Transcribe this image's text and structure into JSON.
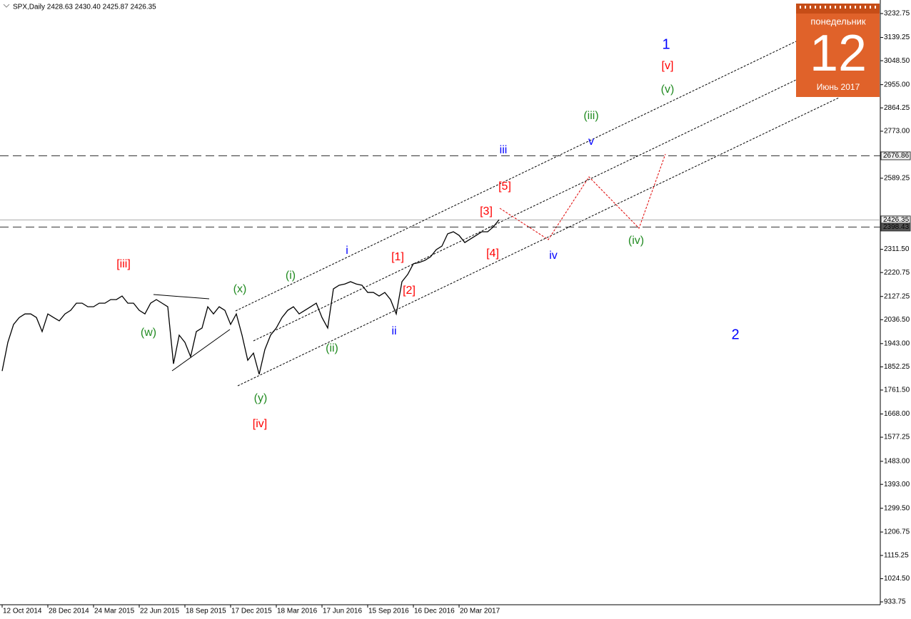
{
  "header": "SPX,Daily  2428.63 2430.40 2425.87 2426.35",
  "calendar": {
    "weekday": "понедельник",
    "day": "12",
    "month": "Июнь 2017"
  },
  "chart_data": {
    "type": "line",
    "categories": [
      "12 Oct 2014",
      null,
      null,
      null,
      null,
      null,
      null,
      null,
      "28 Dec 2014",
      null,
      null,
      null,
      null,
      null,
      null,
      null,
      "24 Mar 2015",
      null,
      null,
      null,
      null,
      null,
      null,
      null,
      "22 Jun 2015",
      null,
      null,
      null,
      null,
      null,
      null,
      null,
      "18 Sep 2015",
      null,
      null,
      null,
      null,
      null,
      null,
      null,
      "17 Dec 2015",
      null,
      null,
      null,
      null,
      null,
      null,
      null,
      "18 Mar 2016",
      null,
      null,
      null,
      null,
      null,
      null,
      null,
      "17 Jun 2016",
      null,
      null,
      null,
      null,
      null,
      null,
      null,
      "15 Sep 2016",
      null,
      null,
      null,
      null,
      null,
      null,
      null,
      "16 Dec 2016",
      null,
      null,
      null,
      null,
      null,
      null,
      null,
      "20 Mar 2017",
      null,
      null,
      null,
      null,
      null,
      null,
      null
    ],
    "series": [
      {
        "name": "SPX",
        "color": "#000000",
        "values": [
          1836,
          1948,
          2018,
          2045,
          2059,
          2059,
          2045,
          1990,
          2059,
          2045,
          2032,
          2059,
          2073,
          2101,
          2101,
          2087,
          2087,
          2101,
          2101,
          2115,
          2115,
          2129,
          2101,
          2101,
          2073,
          2059,
          2101,
          2115,
          2101,
          2087,
          1864,
          1976,
          1948,
          1892,
          1990,
          2004,
          2087,
          2059,
          2087,
          2073,
          2018,
          2059,
          1976,
          1878,
          1906,
          1823,
          1920,
          1976,
          2004,
          2045,
          2073,
          2087,
          2059,
          2073,
          2087,
          2101,
          2045,
          2004,
          2157,
          2171,
          2176,
          2185,
          2176,
          2171,
          2143,
          2143,
          2129,
          2143,
          2115,
          2059,
          2185,
          2213,
          2255,
          2260,
          2268,
          2282,
          2310,
          2324,
          2372,
          2380,
          2366,
          2338,
          2352,
          2366,
          2380,
          2380,
          2399,
          2427
        ]
      }
    ],
    "ylim": [
      922.6,
      3285.7
    ],
    "yticks": [
      {
        "value": 3232.75,
        "label": "3232.75"
      },
      {
        "value": 3139.25,
        "label": "3139.25"
      },
      {
        "value": 3048.5,
        "label": "3048.50"
      },
      {
        "value": 2955,
        "label": "2955.00"
      },
      {
        "value": 2864.25,
        "label": "2864.25"
      },
      {
        "value": 2773,
        "label": "2773.00"
      },
      {
        "value": 2589.25,
        "label": "2589.25"
      },
      {
        "value": 2311.5,
        "label": "2311.50"
      },
      {
        "value": 2220.75,
        "label": "2220.75"
      },
      {
        "value": 2127.25,
        "label": "2127.25"
      },
      {
        "value": 2036.5,
        "label": "2036.50"
      },
      {
        "value": 1943,
        "label": "1943.00"
      },
      {
        "value": 1852.25,
        "label": "1852.25"
      },
      {
        "value": 1761.5,
        "label": "1761.50"
      },
      {
        "value": 1668,
        "label": "1668.00"
      },
      {
        "value": 1577.25,
        "label": "1577.25"
      },
      {
        "value": 1483,
        "label": "1483.00"
      },
      {
        "value": 1393,
        "label": "1393.00"
      },
      {
        "value": 1299.5,
        "label": "1299.50"
      },
      {
        "value": 1206.75,
        "label": "1206.75"
      },
      {
        "value": 1115.25,
        "label": "1115.25"
      },
      {
        "value": 1024.5,
        "label": "1024.50"
      },
      {
        "value": 933.75,
        "label": "933.75"
      }
    ],
    "levels": [
      2676.86,
      2426.35,
      2398.43
    ],
    "annotations": [
      {
        "text": "1",
        "color": "#0000ff"
      },
      {
        "text": "[v]",
        "color": "#ff0000"
      },
      {
        "text": "(v)",
        "color": "#228b22"
      },
      {
        "text": "(iii)",
        "color": "#228b22"
      },
      {
        "text": "v",
        "color": "#0000ff"
      },
      {
        "text": "iii",
        "color": "#0000ff"
      },
      {
        "text": "[5]",
        "color": "#ff0000"
      },
      {
        "text": "[3]",
        "color": "#ff0000"
      },
      {
        "text": "[4]",
        "color": "#ff0000"
      },
      {
        "text": "iv",
        "color": "#0000ff"
      },
      {
        "text": "(iv)",
        "color": "#228b22"
      },
      {
        "text": "i",
        "color": "#0000ff"
      },
      {
        "text": "[1]",
        "color": "#ff0000"
      },
      {
        "text": "[2]",
        "color": "#ff0000"
      },
      {
        "text": "(i)",
        "color": "#228b22"
      },
      {
        "text": "(x)",
        "color": "#228b22"
      },
      {
        "text": "[iii]",
        "color": "#ff0000"
      },
      {
        "text": "(w)",
        "color": "#228b22"
      },
      {
        "text": "(ii)",
        "color": "#228b22"
      },
      {
        "text": "ii",
        "color": "#0000ff"
      },
      {
        "text": "(y)",
        "color": "#228b22"
      },
      {
        "text": "[iv]",
        "color": "#ff0000"
      },
      {
        "text": "2",
        "color": "#0000ff"
      }
    ]
  }
}
